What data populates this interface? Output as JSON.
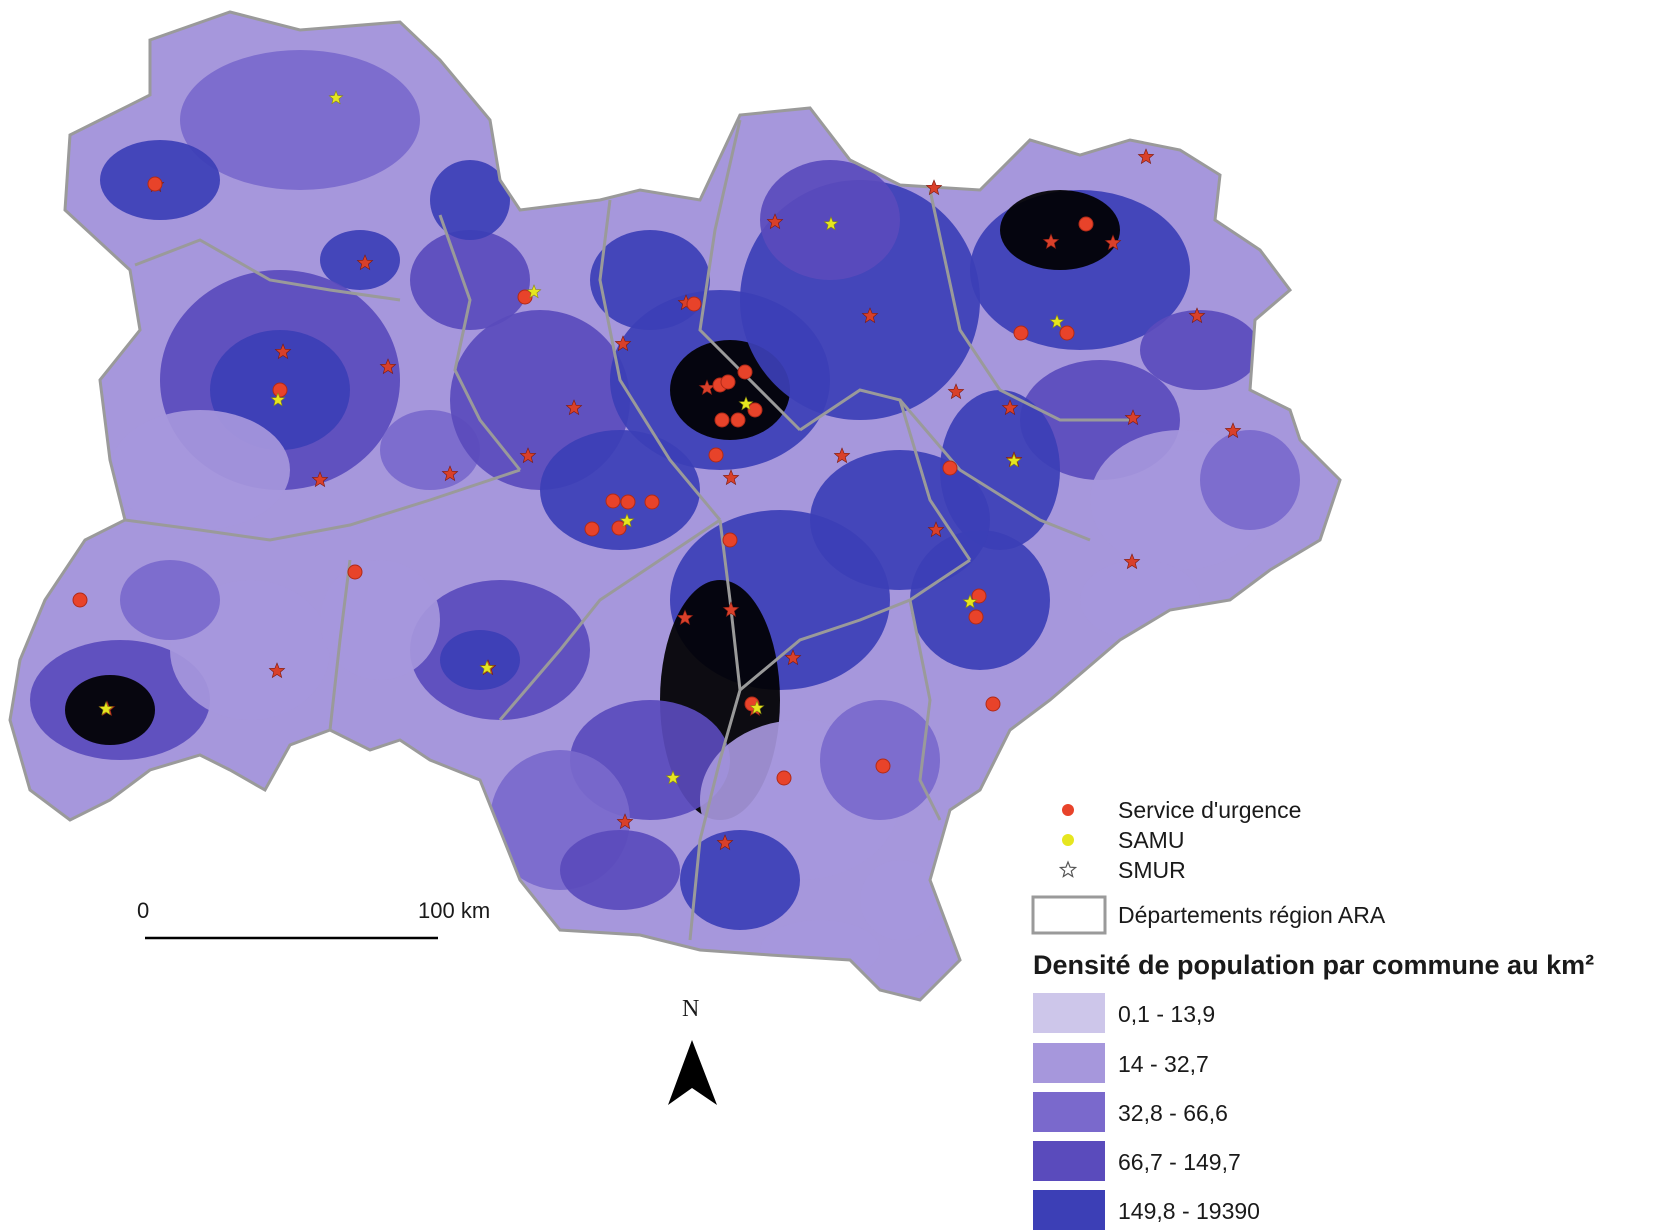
{
  "colors": {
    "class_1": "#cdc6ea",
    "class_2": "#a697dc",
    "class_3": "#7a69cc",
    "class_4": "#5a4bbc",
    "class_5": "#3c3fb6",
    "border": "#9a9a9a",
    "service": "#e8432a",
    "samu": "#e6e61f",
    "smur": "#d9402a"
  },
  "legend": {
    "service": "Service d'urgence",
    "samu": "SAMU",
    "smur": "SMUR",
    "departements": "Départements région ARA",
    "density_title": "Densité de population par commune au km²",
    "classes": [
      "0,1 - 13,9",
      "14 - 32,7",
      "32,8 - 66,6",
      "66,7 - 149,7",
      "149,8 - 19390"
    ]
  },
  "scale": {
    "start": "0",
    "end": "100 km"
  },
  "north": "N",
  "icons": {
    "service": "red-dot-icon",
    "samu": "yellow-dot-icon",
    "smur": "star-icon"
  }
}
